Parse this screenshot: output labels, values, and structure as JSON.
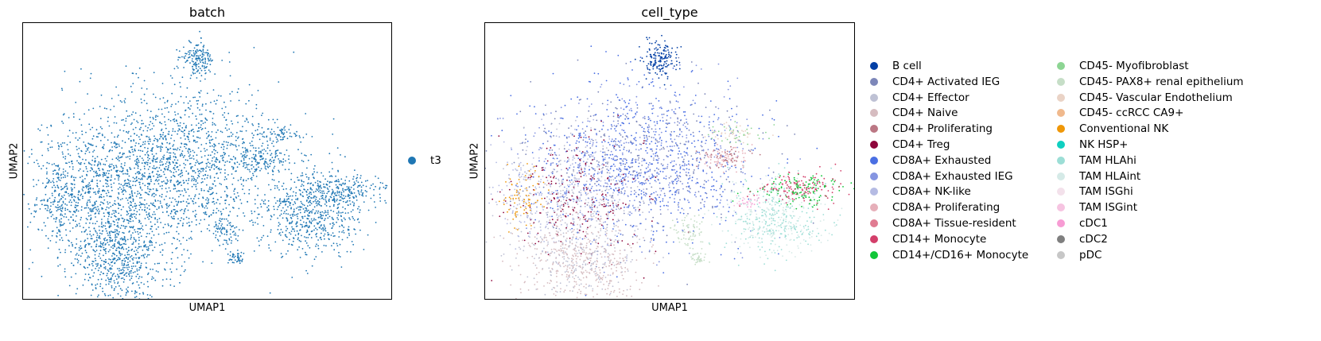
{
  "chart_data": [
    {
      "type": "scatter",
      "title": "batch",
      "xlabel": "UMAP1",
      "ylabel": "UMAP2",
      "grid": false,
      "legend_placement": "right",
      "series": [
        {
          "name": "t3",
          "color": "#1f77b4"
        }
      ]
    },
    {
      "type": "scatter",
      "title": "cell_type",
      "xlabel": "UMAP1",
      "ylabel": "UMAP2",
      "grid": false,
      "legend_placement": "right, two columns",
      "series": [
        {
          "name": "B cell",
          "color": "#023fa5"
        },
        {
          "name": "CD4+ Activated IEG",
          "color": "#7d87b9"
        },
        {
          "name": "CD4+ Effector",
          "color": "#bec1d4"
        },
        {
          "name": "CD4+ Naive",
          "color": "#d6bcc0"
        },
        {
          "name": "CD4+ Proliferating",
          "color": "#bb7784"
        },
        {
          "name": "CD4+ Treg",
          "color": "#8e063b"
        },
        {
          "name": "CD8A+ Exhausted",
          "color": "#4a6fe3"
        },
        {
          "name": "CD8A+ Exhausted IEG",
          "color": "#8595e1"
        },
        {
          "name": "CD8A+ NK-like",
          "color": "#b5bbe3"
        },
        {
          "name": "CD8A+ Proliferating",
          "color": "#e6afb9"
        },
        {
          "name": "CD8A+ Tissue-resident",
          "color": "#e07b91"
        },
        {
          "name": "CD14+ Monocyte",
          "color": "#d33f6a"
        },
        {
          "name": "CD14+/CD16+ Monocyte",
          "color": "#11c638"
        },
        {
          "name": "CD45- Myofibroblast",
          "color": "#8dd593"
        },
        {
          "name": "CD45- PAX8+ renal epithelium",
          "color": "#c6dec7"
        },
        {
          "name": "CD45- Vascular Endothelium",
          "color": "#ead3c6"
        },
        {
          "name": "CD45- ccRCC CA9+",
          "color": "#f0b98d"
        },
        {
          "name": "Conventional NK",
          "color": "#ef9708"
        },
        {
          "name": "NK HSP+",
          "color": "#0fcfc0"
        },
        {
          "name": "TAM HLAhi",
          "color": "#9cded6"
        },
        {
          "name": "TAM HLAint",
          "color": "#d5eae7"
        },
        {
          "name": "TAM ISGhi",
          "color": "#f3e1eb"
        },
        {
          "name": "TAM ISGint",
          "color": "#f6c4e1"
        },
        {
          "name": "cDC1",
          "color": "#f79cd4"
        },
        {
          "name": "cDC2",
          "color": "#7f7f7f"
        },
        {
          "name": "pDC",
          "color": "#c7c7c7"
        }
      ]
    }
  ]
}
